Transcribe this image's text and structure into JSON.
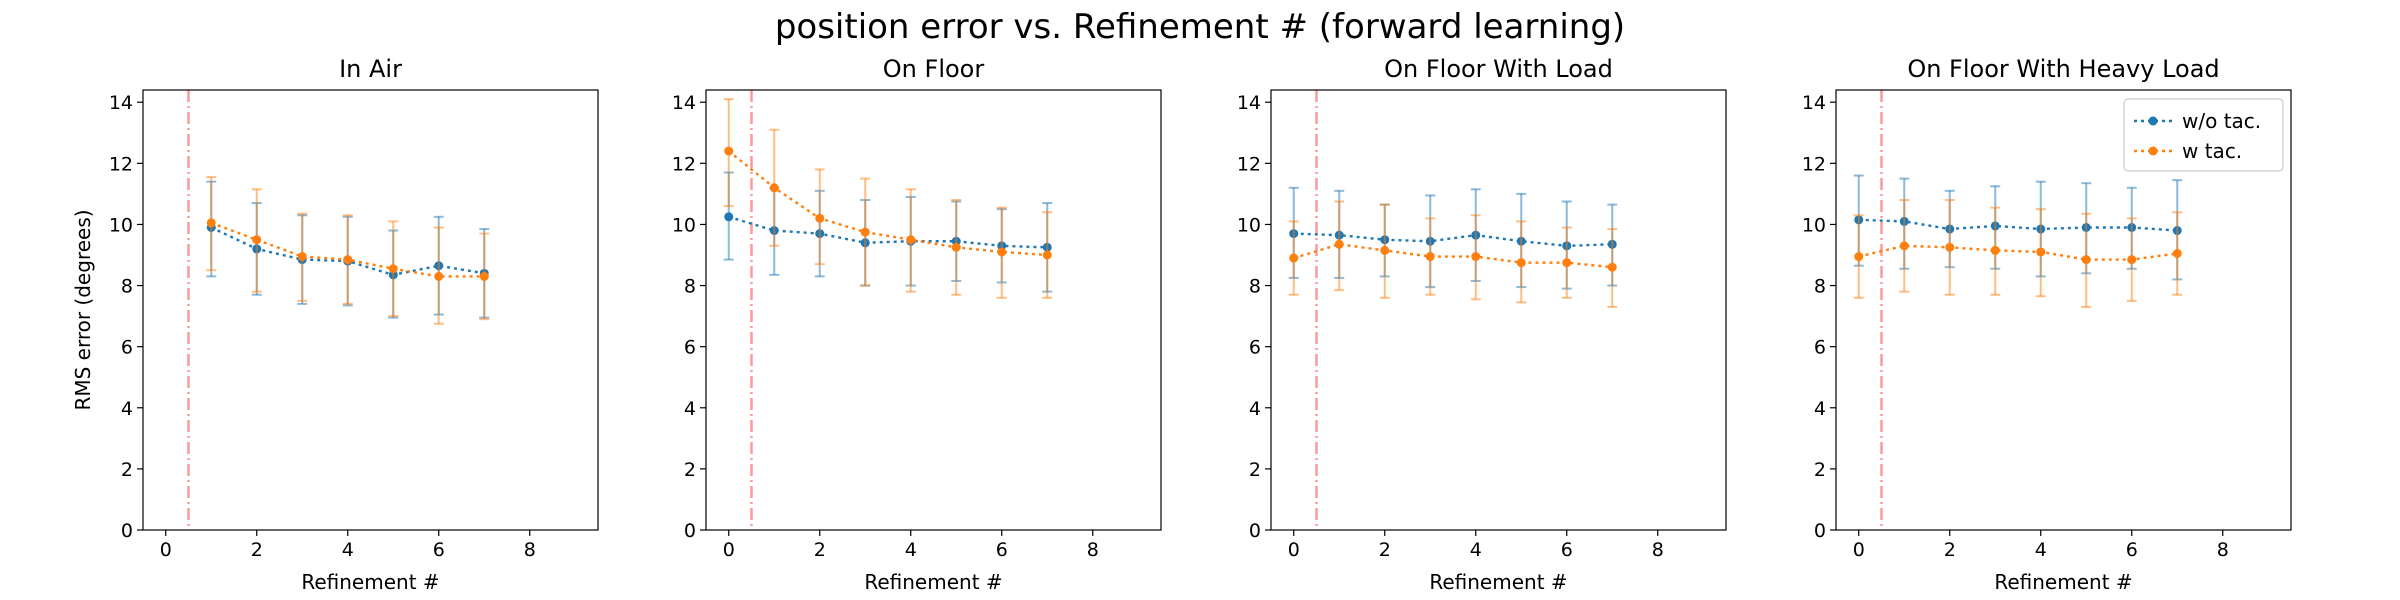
{
  "figure": {
    "title": "position error vs. Refinement # (forward learning)",
    "ylabel": "RMS error (degrees)",
    "legend": {
      "placement": "top-right of last panel",
      "entries": [
        {
          "name": "w/o tac.",
          "color": "#1f77b4"
        },
        {
          "name": "w tac.",
          "color": "#ff7f0e"
        }
      ]
    }
  },
  "chart_data": [
    {
      "type": "line",
      "title": "In Air",
      "xlabel": "Refinement #",
      "ylabel": "RMS error (degrees)",
      "xlim": [
        -0.5,
        9.5
      ],
      "ylim": [
        0,
        14.4
      ],
      "xticks": [
        0,
        2,
        4,
        6,
        8
      ],
      "yticks": [
        0,
        2,
        4,
        6,
        8,
        10,
        12,
        14
      ],
      "vline": {
        "x": 0.5,
        "color": "#ff9999",
        "style": "dashdot"
      },
      "grid": false,
      "series": [
        {
          "name": "w/o tac.",
          "color": "#1f77b4",
          "x": [
            1,
            2,
            3,
            4,
            5,
            6,
            7
          ],
          "y": [
            9.9,
            9.2,
            8.85,
            8.8,
            8.35,
            8.65,
            8.4
          ],
          "err_low": [
            8.3,
            7.7,
            7.4,
            7.35,
            6.95,
            7.05,
            6.95
          ],
          "err_high": [
            11.4,
            10.7,
            10.3,
            10.25,
            9.8,
            10.25,
            9.85
          ]
        },
        {
          "name": "w tac.",
          "color": "#ff7f0e",
          "x": [
            1,
            2,
            3,
            4,
            5,
            6,
            7
          ],
          "y": [
            10.05,
            9.5,
            8.95,
            8.85,
            8.55,
            8.3,
            8.3
          ],
          "err_low": [
            8.5,
            7.8,
            7.5,
            7.4,
            7.0,
            6.75,
            6.9
          ],
          "err_high": [
            11.55,
            11.15,
            10.35,
            10.3,
            10.1,
            9.9,
            9.7
          ]
        }
      ]
    },
    {
      "type": "line",
      "title": "On Floor",
      "xlabel": "Refinement #",
      "ylabel": "",
      "xlim": [
        -0.5,
        9.5
      ],
      "ylim": [
        0,
        14.4
      ],
      "xticks": [
        0,
        2,
        4,
        6,
        8
      ],
      "yticks": [
        0,
        2,
        4,
        6,
        8,
        10,
        12,
        14
      ],
      "vline": {
        "x": 0.5,
        "color": "#ff9999",
        "style": "dashdot"
      },
      "grid": false,
      "series": [
        {
          "name": "w/o tac.",
          "color": "#1f77b4",
          "x": [
            0,
            1,
            2,
            3,
            4,
            5,
            6,
            7
          ],
          "y": [
            10.25,
            9.8,
            9.7,
            9.4,
            9.45,
            9.45,
            9.3,
            9.25
          ],
          "err_low": [
            8.85,
            8.35,
            8.3,
            8.0,
            8.0,
            8.15,
            8.1,
            7.8
          ],
          "err_high": [
            11.7,
            11.2,
            11.1,
            10.8,
            10.9,
            10.75,
            10.5,
            10.7
          ]
        },
        {
          "name": "w tac.",
          "color": "#ff7f0e",
          "x": [
            0,
            1,
            2,
            3,
            4,
            5,
            6,
            7
          ],
          "y": [
            12.4,
            11.2,
            10.2,
            9.75,
            9.5,
            9.25,
            9.1,
            9.0
          ],
          "err_low": [
            10.6,
            9.3,
            8.7,
            8.0,
            7.8,
            7.7,
            7.6,
            7.6
          ],
          "err_high": [
            14.1,
            13.1,
            11.8,
            11.5,
            11.15,
            10.8,
            10.55,
            10.4
          ]
        }
      ]
    },
    {
      "type": "line",
      "title": "On Floor With Load",
      "xlabel": "Refinement #",
      "ylabel": "",
      "xlim": [
        -0.5,
        9.5
      ],
      "ylim": [
        0,
        14.4
      ],
      "xticks": [
        0,
        2,
        4,
        6,
        8
      ],
      "yticks": [
        0,
        2,
        4,
        6,
        8,
        10,
        12,
        14
      ],
      "vline": {
        "x": 0.5,
        "color": "#ff9999",
        "style": "dashdot"
      },
      "grid": false,
      "series": [
        {
          "name": "w/o tac.",
          "color": "#1f77b4",
          "x": [
            0,
            1,
            2,
            3,
            4,
            5,
            6,
            7
          ],
          "y": [
            9.7,
            9.65,
            9.5,
            9.45,
            9.65,
            9.45,
            9.3,
            9.35
          ],
          "err_low": [
            8.25,
            8.25,
            8.3,
            7.95,
            8.15,
            7.95,
            7.9,
            8.0
          ],
          "err_high": [
            11.2,
            11.1,
            10.65,
            10.95,
            11.15,
            11.0,
            10.75,
            10.65
          ]
        },
        {
          "name": "w tac.",
          "color": "#ff7f0e",
          "x": [
            0,
            1,
            2,
            3,
            4,
            5,
            6,
            7
          ],
          "y": [
            8.9,
            9.35,
            9.15,
            8.95,
            8.95,
            8.75,
            8.75,
            8.6
          ],
          "err_low": [
            7.7,
            7.85,
            7.6,
            7.7,
            7.55,
            7.45,
            7.6,
            7.3
          ],
          "err_high": [
            10.1,
            10.75,
            10.65,
            10.2,
            10.3,
            10.1,
            9.9,
            9.85
          ]
        }
      ]
    },
    {
      "type": "line",
      "title": "On Floor With Heavy Load",
      "xlabel": "Refinement #",
      "ylabel": "",
      "xlim": [
        -0.5,
        9.5
      ],
      "ylim": [
        0,
        14.4
      ],
      "xticks": [
        0,
        2,
        4,
        6,
        8
      ],
      "yticks": [
        0,
        2,
        4,
        6,
        8,
        10,
        12,
        14
      ],
      "vline": {
        "x": 0.5,
        "color": "#ff9999",
        "style": "dashdot"
      },
      "grid": false,
      "series": [
        {
          "name": "w/o tac.",
          "color": "#1f77b4",
          "x": [
            0,
            1,
            2,
            3,
            4,
            5,
            6,
            7
          ],
          "y": [
            10.15,
            10.1,
            9.85,
            9.95,
            9.85,
            9.9,
            9.9,
            9.8
          ],
          "err_low": [
            8.65,
            8.55,
            8.6,
            8.55,
            8.3,
            8.4,
            8.55,
            8.2
          ],
          "err_high": [
            11.6,
            11.5,
            11.1,
            11.25,
            11.4,
            11.35,
            11.2,
            11.45
          ]
        },
        {
          "name": "w tac.",
          "color": "#ff7f0e",
          "x": [
            0,
            1,
            2,
            3,
            4,
            5,
            6,
            7
          ],
          "y": [
            8.95,
            9.3,
            9.25,
            9.15,
            9.1,
            8.85,
            8.85,
            9.05
          ],
          "err_low": [
            7.6,
            7.8,
            7.7,
            7.7,
            7.65,
            7.3,
            7.5,
            7.7
          ],
          "err_high": [
            10.3,
            10.8,
            10.8,
            10.55,
            10.5,
            10.35,
            10.2,
            10.4
          ]
        }
      ]
    }
  ]
}
